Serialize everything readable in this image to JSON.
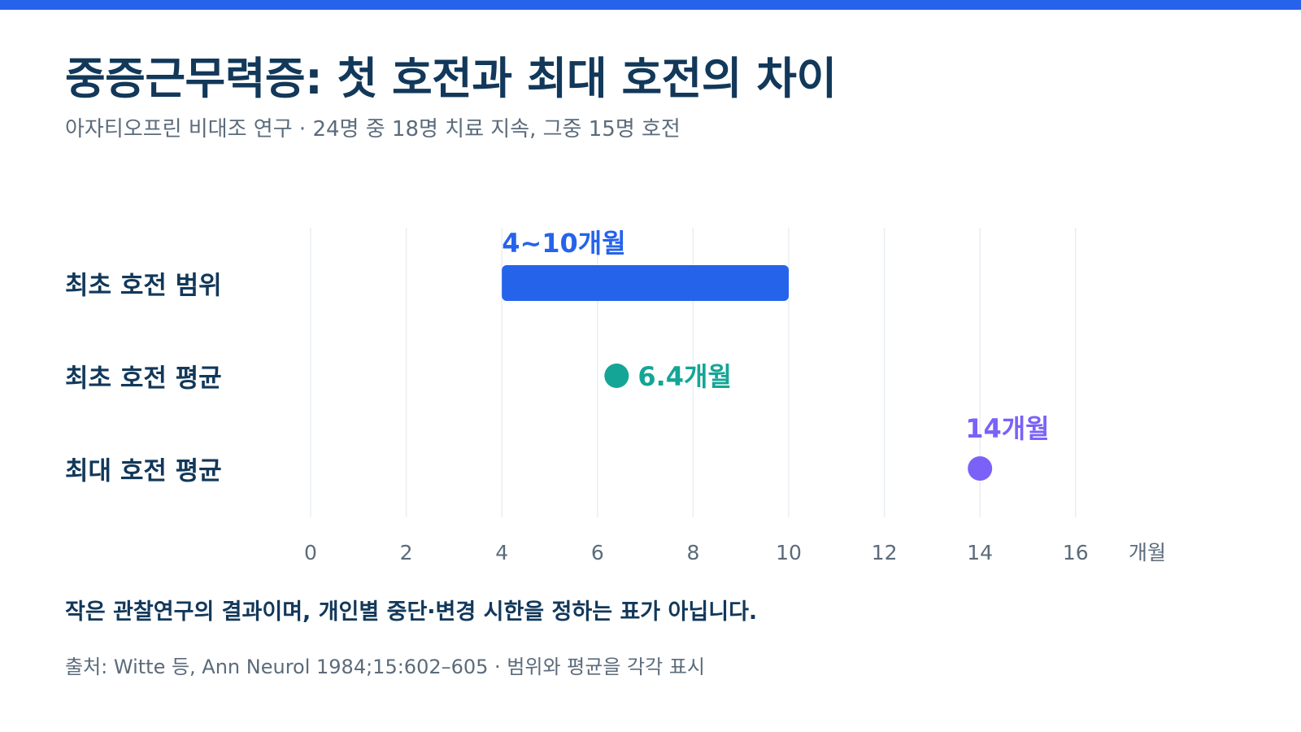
{
  "header": {
    "title": "중증근무력증: 첫 호전과 최대 호전의 차이",
    "subtitle": "아자티오프린 비대조 연구 · 24명 중 18명 치료 지속, 그중 15명 호전"
  },
  "chart_data": {
    "type": "range-dot",
    "title": "중증근무력증: 첫 호전과 최대 호전의 차이",
    "xlabel": "",
    "x_unit": "개월",
    "xlim": [
      0,
      17
    ],
    "x_ticks": [
      "0",
      "2",
      "4",
      "6",
      "8",
      "10",
      "12",
      "14",
      "16"
    ],
    "x_tick_values": [
      0,
      2,
      4,
      6,
      8,
      10,
      12,
      14,
      16
    ],
    "grid": true,
    "rows": [
      {
        "label": "최초 호전 범위",
        "kind": "range",
        "start": 4,
        "end": 10,
        "value_label": "4~10개월",
        "color": "#2563eb"
      },
      {
        "label": "최초 호전 평균",
        "kind": "point",
        "value": 6.4,
        "value_label": "6.4개월",
        "color": "#14a596"
      },
      {
        "label": "최대 호전 평균",
        "kind": "point",
        "value": 14,
        "value_label": "14개월",
        "color": "#7b61f8"
      }
    ]
  },
  "footer": {
    "note": "작은 관찰연구의 결과이며, 개인별 중단·변경 시한을 정하는 표가 아닙니다.",
    "source": "출처: Witte 등, Ann Neurol 1984;15:602–605 · 범위와 평균을 각각 표시"
  },
  "colors": {
    "accent": "#2563eb",
    "text_dark": "#12385a",
    "text_muted": "#5b6b7b",
    "grid": "#e9eef3"
  }
}
